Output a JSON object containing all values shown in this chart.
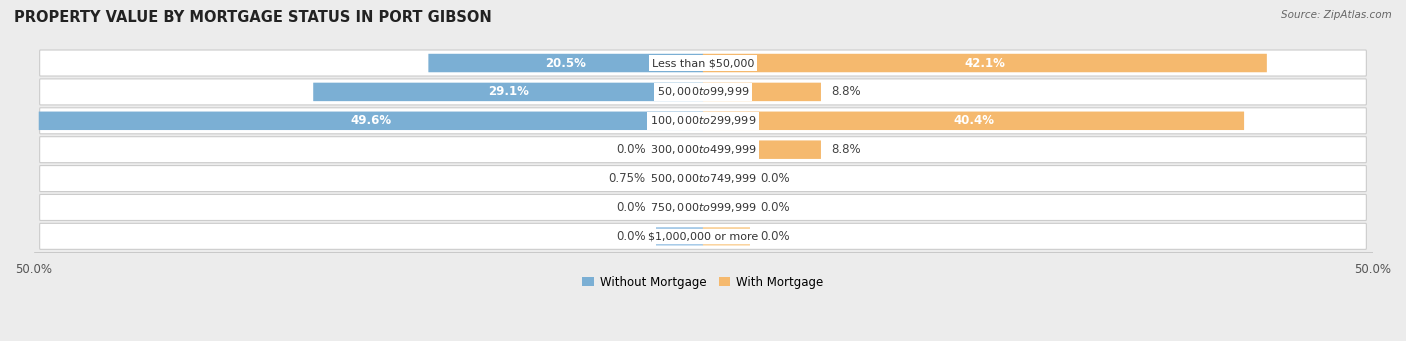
{
  "title": "PROPERTY VALUE BY MORTGAGE STATUS IN PORT GIBSON",
  "source": "Source: ZipAtlas.com",
  "categories": [
    "Less than $50,000",
    "$50,000 to $99,999",
    "$100,000 to $299,999",
    "$300,000 to $499,999",
    "$500,000 to $749,999",
    "$750,000 to $999,999",
    "$1,000,000 or more"
  ],
  "without_mortgage": [
    20.5,
    29.1,
    49.6,
    0.0,
    0.75,
    0.0,
    0.0
  ],
  "with_mortgage": [
    42.1,
    8.8,
    40.4,
    8.8,
    0.0,
    0.0,
    0.0
  ],
  "without_mortgage_labels": [
    "20.5%",
    "29.1%",
    "49.6%",
    "0.0%",
    "0.75%",
    "0.0%",
    "0.0%"
  ],
  "with_mortgage_labels": [
    "42.1%",
    "8.8%",
    "40.4%",
    "8.8%",
    "0.0%",
    "0.0%",
    "0.0%"
  ],
  "without_mortgage_color": "#7BAFD4",
  "with_mortgage_color": "#F5B96E",
  "without_mortgage_color_light": "#A8CBE8",
  "with_mortgage_color_light": "#FAD4A0",
  "bar_height": 0.62,
  "xlim_left": -50,
  "xlim_right": 50,
  "background_color": "#ececec",
  "title_fontsize": 10.5,
  "label_fontsize": 8.5,
  "axis_label_fontsize": 8.5,
  "legend_fontsize": 8.5,
  "stub_min": 3.5
}
